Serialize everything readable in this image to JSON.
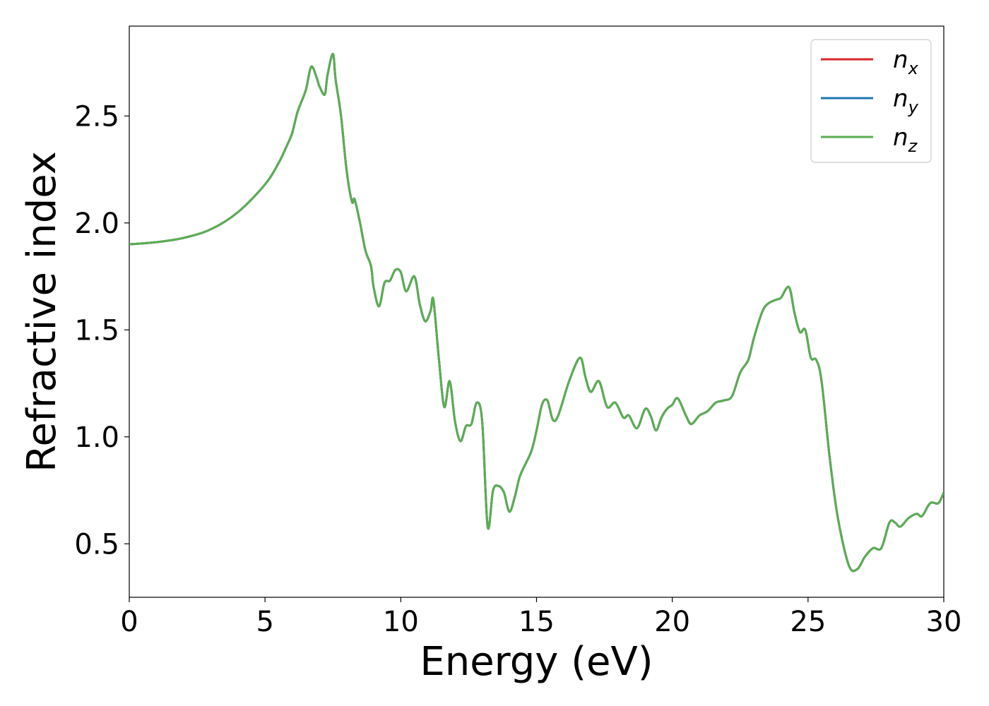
{
  "chart_data": {
    "type": "line",
    "title": "",
    "xlabel": "Energy (eV)",
    "ylabel": "Refractive index",
    "xlim": [
      0,
      30
    ],
    "ylim": [
      0.25,
      2.92
    ],
    "xticks": [
      0,
      5,
      10,
      15,
      20,
      25,
      30
    ],
    "xtick_labels": [
      "0",
      "5",
      "10",
      "15",
      "20",
      "25",
      "30"
    ],
    "yticks": [
      0.5,
      1.0,
      1.5,
      2.0,
      2.5
    ],
    "ytick_labels": [
      "0.5",
      "1.0",
      "1.5",
      "2.0",
      "2.5"
    ],
    "grid": false,
    "legend": {
      "position": "top-right"
    },
    "series": [
      {
        "name": "n",
        "subscript": "x",
        "color": "#d62728",
        "visible_under": true
      },
      {
        "name": "n",
        "subscript": "y",
        "color": "#1f77b4",
        "visible_under": true
      },
      {
        "name": "n",
        "subscript": "z",
        "color": "#5aae51",
        "visible_under": false
      }
    ],
    "x": [
      0,
      1,
      2,
      3,
      4,
      5,
      5.5,
      5.8,
      6.0,
      6.2,
      6.5,
      6.7,
      6.9,
      7.0,
      7.2,
      7.3,
      7.5,
      7.6,
      7.8,
      8.0,
      8.2,
      8.3,
      8.5,
      8.7,
      8.9,
      9.0,
      9.2,
      9.4,
      9.6,
      9.8,
      10.0,
      10.2,
      10.5,
      10.7,
      10.9,
      11.1,
      11.2,
      11.4,
      11.6,
      11.8,
      12.0,
      12.2,
      12.4,
      12.6,
      12.8,
      13.0,
      13.2,
      13.4,
      13.6,
      13.8,
      14.0,
      14.2,
      14.4,
      14.8,
      15.0,
      15.2,
      15.4,
      15.6,
      15.8,
      16.2,
      16.6,
      16.8,
      17.0,
      17.3,
      17.6,
      17.9,
      18.2,
      18.4,
      18.7,
      19.0,
      19.2,
      19.4,
      19.6,
      19.8,
      20.0,
      20.2,
      20.5,
      20.7,
      21.0,
      21.3,
      21.6,
      21.9,
      22.2,
      22.5,
      22.8,
      23.0,
      23.3,
      23.5,
      23.8,
      24.0,
      24.3,
      24.5,
      24.7,
      24.9,
      25.1,
      25.3,
      25.5,
      25.8,
      26.1,
      26.5,
      26.8,
      27.1,
      27.4,
      27.7,
      28.0,
      28.2,
      28.4,
      28.7,
      29.0,
      29.2,
      29.5,
      29.8,
      30.0
    ],
    "values": [
      1.9,
      1.91,
      1.93,
      1.97,
      2.05,
      2.18,
      2.28,
      2.36,
      2.42,
      2.52,
      2.62,
      2.73,
      2.68,
      2.64,
      2.6,
      2.69,
      2.79,
      2.67,
      2.5,
      2.25,
      2.1,
      2.11,
      2.0,
      1.87,
      1.8,
      1.7,
      1.61,
      1.72,
      1.73,
      1.78,
      1.77,
      1.68,
      1.75,
      1.62,
      1.54,
      1.59,
      1.64,
      1.37,
      1.14,
      1.26,
      1.07,
      0.98,
      1.05,
      1.06,
      1.16,
      1.07,
      0.58,
      0.75,
      0.77,
      0.74,
      0.65,
      0.72,
      0.82,
      0.93,
      1.03,
      1.15,
      1.17,
      1.08,
      1.1,
      1.26,
      1.37,
      1.28,
      1.21,
      1.26,
      1.14,
      1.16,
      1.09,
      1.1,
      1.04,
      1.13,
      1.1,
      1.03,
      1.09,
      1.13,
      1.15,
      1.18,
      1.1,
      1.06,
      1.1,
      1.12,
      1.16,
      1.17,
      1.19,
      1.3,
      1.36,
      1.46,
      1.58,
      1.62,
      1.64,
      1.65,
      1.7,
      1.58,
      1.49,
      1.5,
      1.37,
      1.36,
      1.26,
      0.9,
      0.62,
      0.4,
      0.38,
      0.44,
      0.48,
      0.48,
      0.6,
      0.6,
      0.58,
      0.62,
      0.64,
      0.63,
      0.69,
      0.69,
      0.74
    ]
  }
}
